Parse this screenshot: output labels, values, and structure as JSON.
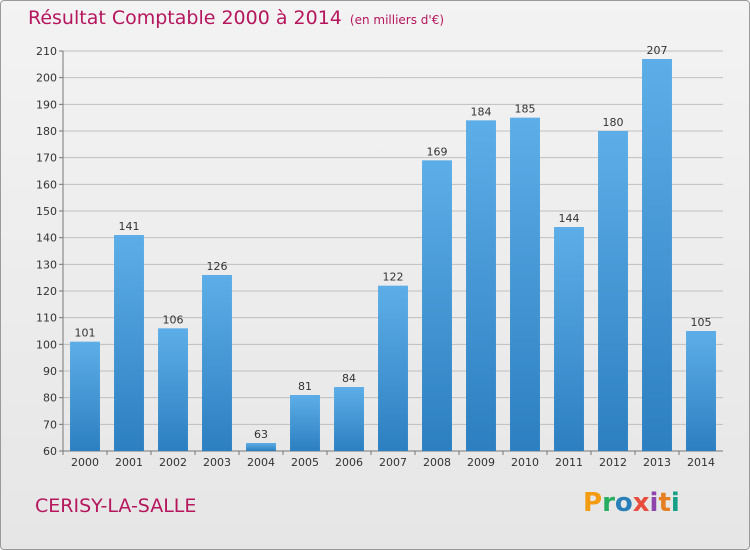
{
  "title": "Résultat Comptable 2000 à 2014",
  "subtitle": "(en milliers d'€)",
  "commune": "CERISY-LA-SALLE",
  "logo": [
    "P",
    "r",
    "o",
    "x",
    "i",
    "t",
    "i"
  ],
  "logo_colors": [
    "#f39c12",
    "#27ae60",
    "#2980b9",
    "#e74c3c",
    "#8e44ad",
    "#e67e22",
    "#16a085"
  ],
  "colors": {
    "bar_light": "#5daee8",
    "bar_dark": "#2c7fc0",
    "grid": "#bfbfbf",
    "title": "#b5165d"
  },
  "chart_data": {
    "type": "bar",
    "title": "Résultat Comptable 2000 à 2014",
    "categories": [
      "2000",
      "2001",
      "2002",
      "2003",
      "2004",
      "2005",
      "2006",
      "2007",
      "2008",
      "2009",
      "2010",
      "2011",
      "2012",
      "2013",
      "2014"
    ],
    "values": [
      101,
      141,
      106,
      126,
      63,
      81,
      84,
      122,
      169,
      184,
      185,
      144,
      180,
      207,
      105
    ],
    "ylim": [
      60,
      210
    ],
    "yticks": [
      60,
      70,
      80,
      90,
      100,
      110,
      120,
      130,
      140,
      150,
      160,
      170,
      180,
      190,
      200,
      210
    ],
    "grid": true,
    "xlabel": "",
    "ylabel": ""
  }
}
